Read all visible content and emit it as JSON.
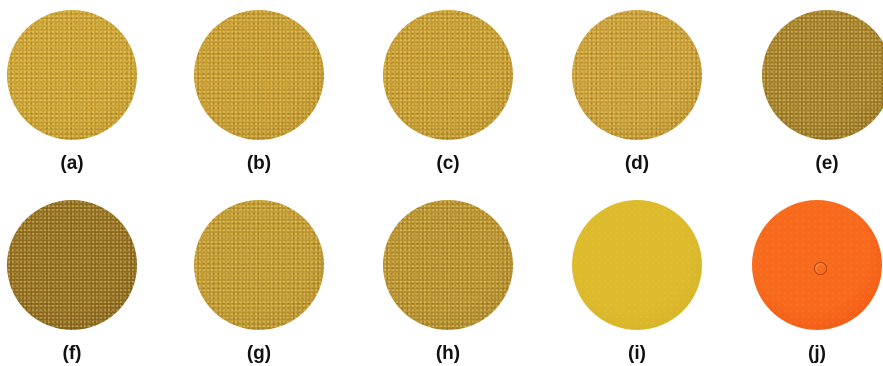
{
  "samples": [
    {
      "label": "(a)",
      "color": "#C9A030",
      "edge": "#B58C22",
      "texture": "granular"
    },
    {
      "label": "(b)",
      "color": "#C49A2E",
      "edge": "#AE8624",
      "texture": "granular"
    },
    {
      "label": "(c)",
      "color": "#C39A2E",
      "edge": "#AD8624",
      "texture": "granular"
    },
    {
      "label": "(d)",
      "color": "#C79C34",
      "edge": "#AE8526",
      "texture": "granular"
    },
    {
      "label": "(e)",
      "color": "#A07C26",
      "edge": "#86661C",
      "texture": "granular"
    },
    {
      "label": "(f)",
      "color": "#8E6A1E",
      "edge": "#765616",
      "texture": "granular"
    },
    {
      "label": "(g)",
      "color": "#BE972E",
      "edge": "#A88226",
      "texture": "granular"
    },
    {
      "label": "(h)",
      "color": "#B58E2C",
      "edge": "#9C7A22",
      "texture": "granular"
    },
    {
      "label": "(i)",
      "color": "#DDBB2C",
      "edge": "#D1AE26",
      "texture": "smooth"
    },
    {
      "label": "(j)",
      "color": "#F86A1C",
      "edge": "#EE4E10",
      "texture": "smooth",
      "bubble": true
    }
  ]
}
